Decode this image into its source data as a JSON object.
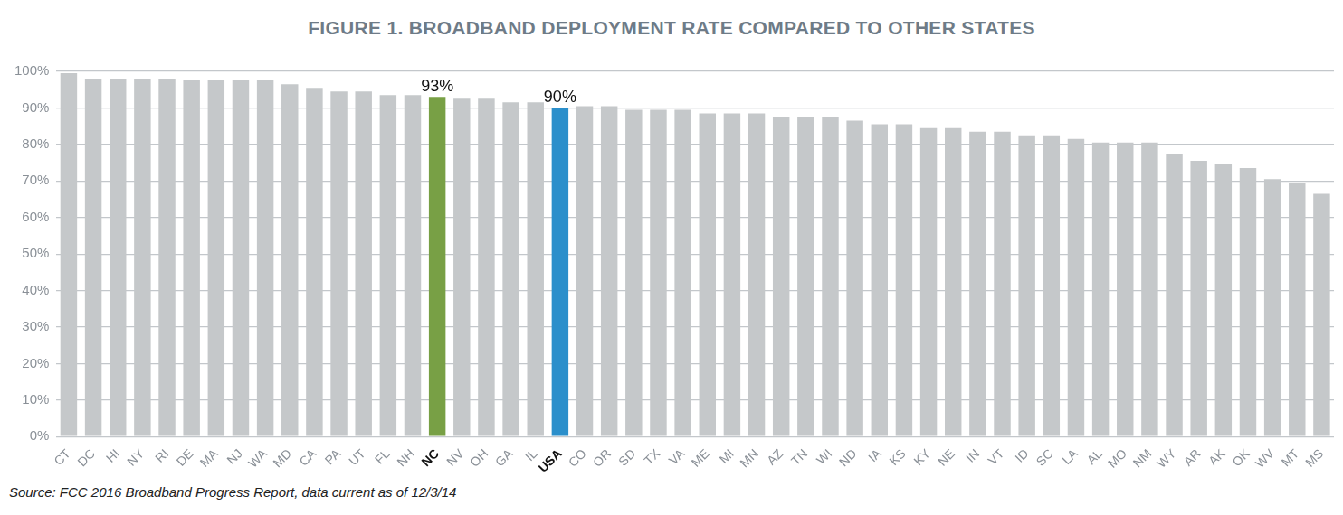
{
  "chart_data": {
    "type": "bar",
    "title": "FIGURE 1. BROADBAND DEPLOYMENT RATE COMPARED TO OTHER STATES",
    "source": "Source: FCC 2016 Broadband Progress Report, data current as of 12/3/14",
    "categories": [
      "CT",
      "DC",
      "HI",
      "NY",
      "RI",
      "DE",
      "MA",
      "NJ",
      "WA",
      "MD",
      "CA",
      "PA",
      "UT",
      "FL",
      "NH",
      "NC",
      "NV",
      "OH",
      "GA",
      "IL",
      "USA",
      "CO",
      "OR",
      "SD",
      "TX",
      "VA",
      "ME",
      "MI",
      "MN",
      "AZ",
      "TN",
      "WI",
      "ND",
      "IA",
      "KS",
      "KY",
      "NE",
      "IN",
      "VT",
      "ID",
      "SC",
      "LA",
      "AL",
      "MO",
      "NM",
      "WY",
      "AR",
      "AK",
      "OK",
      "WV",
      "MT",
      "MS"
    ],
    "values": [
      99.5,
      98,
      98,
      98,
      98,
      97.5,
      97.5,
      97.5,
      97.5,
      96.5,
      95.5,
      94.5,
      94.5,
      93.5,
      93.5,
      93,
      92.5,
      92.5,
      91.5,
      91.5,
      90,
      90.5,
      90.5,
      89.5,
      89.5,
      89.5,
      88.5,
      88.5,
      88.5,
      87.5,
      87.5,
      87.5,
      86.5,
      85.5,
      85.5,
      84.5,
      84.5,
      83.5,
      83.5,
      82.5,
      82.5,
      81.5,
      80.5,
      80.5,
      80.5,
      77.5,
      75.5,
      74.5,
      73.5,
      70.5,
      69.5,
      66.5
    ],
    "value_labels": [
      null,
      null,
      null,
      null,
      null,
      null,
      null,
      null,
      null,
      null,
      null,
      null,
      null,
      null,
      null,
      "93%",
      null,
      null,
      null,
      null,
      "90%",
      null,
      null,
      null,
      null,
      null,
      null,
      null,
      null,
      null,
      null,
      null,
      null,
      null,
      null,
      null,
      null,
      null,
      null,
      null,
      null,
      null,
      null,
      null,
      null,
      null,
      null,
      null,
      null,
      null,
      null,
      null
    ],
    "colors": [
      "#c5c8ca",
      "#c5c8ca",
      "#c5c8ca",
      "#c5c8ca",
      "#c5c8ca",
      "#c5c8ca",
      "#c5c8ca",
      "#c5c8ca",
      "#c5c8ca",
      "#c5c8ca",
      "#c5c8ca",
      "#c5c8ca",
      "#c5c8ca",
      "#c5c8ca",
      "#c5c8ca",
      "#78a045",
      "#c5c8ca",
      "#c5c8ca",
      "#c5c8ca",
      "#c5c8ca",
      "#2b8fcb",
      "#c5c8ca",
      "#c5c8ca",
      "#c5c8ca",
      "#c5c8ca",
      "#c5c8ca",
      "#c5c8ca",
      "#c5c8ca",
      "#c5c8ca",
      "#c5c8ca",
      "#c5c8ca",
      "#c5c8ca",
      "#c5c8ca",
      "#c5c8ca",
      "#c5c8ca",
      "#c5c8ca",
      "#c5c8ca",
      "#c5c8ca",
      "#c5c8ca",
      "#c5c8ca",
      "#c5c8ca",
      "#c5c8ca",
      "#c5c8ca",
      "#c5c8ca",
      "#c5c8ca",
      "#c5c8ca",
      "#c5c8ca",
      "#c5c8ca",
      "#c5c8ca",
      "#c5c8ca",
      "#c5c8ca",
      "#c5c8ca"
    ],
    "ylim": [
      0,
      100
    ],
    "yticks": [
      {
        "value": 0,
        "label": "0%"
      },
      {
        "value": 10,
        "label": "10%"
      },
      {
        "value": 20,
        "label": "20%"
      },
      {
        "value": 30,
        "label": "30%"
      },
      {
        "value": 40,
        "label": "40%"
      },
      {
        "value": 50,
        "label": "50%"
      },
      {
        "value": 60,
        "label": "60%"
      },
      {
        "value": 70,
        "label": "70%"
      },
      {
        "value": 80,
        "label": "80%"
      },
      {
        "value": 90,
        "label": "90%"
      },
      {
        "value": 100,
        "label": "100%"
      }
    ],
    "grid": true,
    "data_labels": true
  }
}
